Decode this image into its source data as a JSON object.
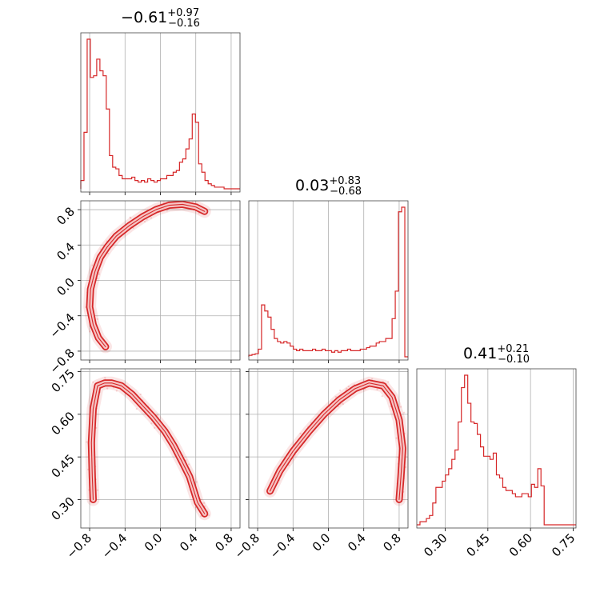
{
  "chart_data": {
    "type": "corner",
    "color": "#d62728",
    "grid": true,
    "parameters": [
      {
        "range": [
          -0.9,
          0.9
        ],
        "ticks": [
          -0.8,
          -0.4,
          0.0,
          0.4,
          0.8
        ],
        "tick_labels": [
          "−0.8",
          "−0.4",
          "0.0",
          "0.4",
          "0.8"
        ]
      },
      {
        "range": [
          -0.9,
          0.9
        ],
        "ticks": [
          -0.8,
          -0.4,
          0.0,
          0.4,
          0.8
        ],
        "tick_labels": [
          "−0.8",
          "−0.4",
          "0.0",
          "0.4",
          "0.8"
        ]
      },
      {
        "range": [
          0.2,
          0.76
        ],
        "ticks": [
          0.3,
          0.45,
          0.6,
          0.75
        ],
        "tick_labels": [
          "0.30",
          "0.45",
          "0.60",
          "0.75"
        ]
      }
    ],
    "titles": [
      {
        "median": "−0.61",
        "plus": "+0.97",
        "minus": "−0.16"
      },
      {
        "median": "0.03",
        "plus": "+0.83",
        "minus": "−0.68"
      },
      {
        "median": "0.41",
        "plus": "+0.21",
        "minus": "−0.10"
      }
    ],
    "histograms": [
      {
        "param": 0,
        "bin_start": -0.9,
        "bin_width": 0.036,
        "counts": [
          0.05,
          0.34,
          0.9,
          0.67,
          0.68,
          0.78,
          0.71,
          0.68,
          0.48,
          0.2,
          0.13,
          0.12,
          0.08,
          0.06,
          0.06,
          0.06,
          0.07,
          0.05,
          0.04,
          0.05,
          0.04,
          0.06,
          0.05,
          0.04,
          0.05,
          0.06,
          0.06,
          0.08,
          0.08,
          0.1,
          0.11,
          0.16,
          0.18,
          0.24,
          0.3,
          0.45,
          0.4,
          0.15,
          0.1,
          0.05,
          0.03,
          0.02,
          0.01,
          0.01,
          0.01,
          0.0,
          0.0,
          0.0,
          0.0,
          0.0
        ]
      },
      {
        "param": 1,
        "bin_start": -0.9,
        "bin_width": 0.036,
        "counts": [
          0.01,
          0.015,
          0.02,
          0.05,
          0.34,
          0.3,
          0.26,
          0.18,
          0.12,
          0.1,
          0.09,
          0.1,
          0.09,
          0.07,
          0.05,
          0.04,
          0.05,
          0.04,
          0.04,
          0.04,
          0.05,
          0.04,
          0.04,
          0.05,
          0.04,
          0.04,
          0.03,
          0.04,
          0.03,
          0.04,
          0.04,
          0.05,
          0.04,
          0.04,
          0.04,
          0.05,
          0.05,
          0.06,
          0.07,
          0.07,
          0.09,
          0.1,
          0.1,
          0.12,
          0.12,
          0.25,
          0.43,
          0.95,
          0.98,
          0.0
        ]
      },
      {
        "param": 2,
        "bin_start": 0.2,
        "bin_width": 0.0112,
        "counts": [
          0.0,
          0.02,
          0.02,
          0.04,
          0.06,
          0.14,
          0.24,
          0.24,
          0.28,
          0.32,
          0.36,
          0.42,
          0.48,
          0.66,
          0.88,
          0.96,
          0.78,
          0.66,
          0.65,
          0.58,
          0.5,
          0.44,
          0.44,
          0.42,
          0.46,
          0.32,
          0.3,
          0.24,
          0.22,
          0.22,
          0.2,
          0.18,
          0.18,
          0.2,
          0.2,
          0.18,
          0.26,
          0.24,
          0.36,
          0.25,
          0.0,
          0.0,
          0.0,
          0.0,
          0.0,
          0.0,
          0.0,
          0.0,
          0.0,
          0.0
        ]
      }
    ],
    "scatter_panels": [
      {
        "x_param": 0,
        "y_param": 1,
        "curve_x": [
          -0.62,
          -0.7,
          -0.76,
          -0.8,
          -0.79,
          -0.74,
          -0.68,
          -0.6,
          -0.5,
          -0.35,
          -0.2,
          -0.05,
          0.1,
          0.25,
          0.4,
          0.5
        ],
        "curve_y": [
          -0.75,
          -0.65,
          -0.5,
          -0.3,
          -0.1,
          0.1,
          0.26,
          0.38,
          0.5,
          0.62,
          0.72,
          0.8,
          0.85,
          0.86,
          0.83,
          0.78
        ]
      },
      {
        "x_param": 0,
        "y_param": 2,
        "curve_x": [
          -0.76,
          -0.77,
          -0.78,
          -0.76,
          -0.71,
          -0.63,
          -0.55,
          -0.44,
          -0.32,
          -0.2,
          -0.08,
          0.05,
          0.15,
          0.25,
          0.33,
          0.38,
          0.42,
          0.46,
          0.5
        ],
        "curve_y": [
          0.3,
          0.38,
          0.5,
          0.62,
          0.7,
          0.71,
          0.71,
          0.7,
          0.67,
          0.63,
          0.59,
          0.54,
          0.49,
          0.43,
          0.38,
          0.33,
          0.29,
          0.27,
          0.25
        ]
      },
      {
        "x_param": 1,
        "y_param": 2,
        "curve_x": [
          -0.66,
          -0.55,
          -0.4,
          -0.22,
          -0.05,
          0.12,
          0.3,
          0.46,
          0.62,
          0.72,
          0.8,
          0.84,
          0.82,
          0.8
        ],
        "curve_y": [
          0.33,
          0.4,
          0.47,
          0.54,
          0.6,
          0.65,
          0.69,
          0.71,
          0.7,
          0.66,
          0.58,
          0.48,
          0.38,
          0.3
        ]
      }
    ]
  }
}
